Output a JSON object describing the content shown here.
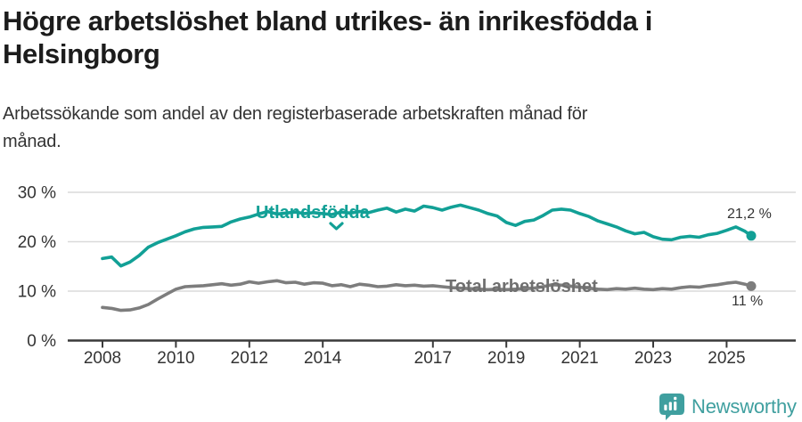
{
  "header": {
    "title_lines": [
      "Högre arbetslöshet bland utrikes- än inrikesfödda i",
      "Helsingborg"
    ],
    "subtitle_lines": [
      "Arbetssökande som andel av den registerbaserade arbetskraften månad för",
      "månad."
    ]
  },
  "chart_data": {
    "type": "line",
    "title": "Högre arbetslöshet bland utrikes- än inrikesfödda i Helsingborg",
    "subtitle": "Arbetssökande som andel av den registerbaserade arbetskraften månad för månad.",
    "xlabel": "",
    "ylabel": "",
    "ylim": [
      0,
      30
    ],
    "xlim": [
      2007.05,
      2026.9
    ],
    "grid": "horizontal",
    "legend_position": "inline-annotations",
    "y_ticks": [
      {
        "value": 0,
        "label": "0 %"
      },
      {
        "value": 10,
        "label": "10 %"
      },
      {
        "value": 20,
        "label": "20 %"
      },
      {
        "value": 30,
        "label": "30 %"
      }
    ],
    "x_ticks": [
      {
        "value": 2008,
        "label": "2008"
      },
      {
        "value": 2010,
        "label": "2010"
      },
      {
        "value": 2012,
        "label": "2012"
      },
      {
        "value": 2014,
        "label": "2014"
      },
      {
        "value": 2017,
        "label": "2017"
      },
      {
        "value": 2019,
        "label": "2019"
      },
      {
        "value": 2021,
        "label": "2021"
      },
      {
        "value": 2023,
        "label": "2023"
      },
      {
        "value": 2025,
        "label": "2025"
      }
    ],
    "x": [
      2008,
      2008.25,
      2008.5,
      2008.75,
      2009,
      2009.25,
      2009.5,
      2009.75,
      2010,
      2010.25,
      2010.5,
      2010.75,
      2011,
      2011.25,
      2011.5,
      2011.75,
      2012,
      2012.25,
      2012.5,
      2012.75,
      2013,
      2013.25,
      2013.5,
      2013.75,
      2014,
      2014.25,
      2014.5,
      2014.75,
      2015,
      2015.25,
      2015.5,
      2015.75,
      2016,
      2016.25,
      2016.5,
      2016.75,
      2017,
      2017.25,
      2017.5,
      2017.75,
      2018,
      2018.25,
      2018.5,
      2018.75,
      2019,
      2019.25,
      2019.5,
      2019.75,
      2020,
      2020.25,
      2020.5,
      2020.75,
      2021,
      2021.25,
      2021.5,
      2021.75,
      2022,
      2022.25,
      2022.5,
      2022.75,
      2023,
      2023.25,
      2023.5,
      2023.75,
      2024,
      2024.25,
      2024.5,
      2024.75,
      2025,
      2025.25,
      2025.5,
      2025.67
    ],
    "series": [
      {
        "name": "Utlandsfödda",
        "color": "#12a096",
        "end_label": "21,2 %",
        "last_value": 21.2,
        "values": [
          16.6,
          16.9,
          15.1,
          15.9,
          17.2,
          18.9,
          19.8,
          20.5,
          21.2,
          22.0,
          22.6,
          22.9,
          23.0,
          23.1,
          24.0,
          24.6,
          25.0,
          25.6,
          26.1,
          25.6,
          25.8,
          26.0,
          25.7,
          25.9,
          25.7,
          25.5,
          26.0,
          25.8,
          26.1,
          25.9,
          26.4,
          26.8,
          26.0,
          26.6,
          26.2,
          27.2,
          26.9,
          26.4,
          27.0,
          27.4,
          26.9,
          26.4,
          25.7,
          25.2,
          23.9,
          23.3,
          24.1,
          24.4,
          25.3,
          26.4,
          26.6,
          26.4,
          25.7,
          25.1,
          24.2,
          23.6,
          23.0,
          22.2,
          21.6,
          21.9,
          21.0,
          20.5,
          20.4,
          20.9,
          21.1,
          20.9,
          21.4,
          21.7,
          22.3,
          23.0,
          22.1,
          21.2
        ]
      },
      {
        "name": "Total arbetslöshet",
        "color": "#7d7d7d",
        "end_label": "11 %",
        "last_value": 11,
        "values": [
          6.7,
          6.5,
          6.1,
          6.2,
          6.6,
          7.3,
          8.4,
          9.4,
          10.4,
          10.9,
          11.0,
          11.1,
          11.3,
          11.5,
          11.2,
          11.4,
          11.9,
          11.6,
          11.9,
          12.1,
          11.7,
          11.8,
          11.4,
          11.7,
          11.6,
          11.1,
          11.3,
          10.9,
          11.4,
          11.2,
          10.9,
          11.0,
          11.3,
          11.1,
          11.2,
          11.0,
          11.1,
          10.9,
          10.7,
          10.6,
          10.5,
          10.4,
          10.3,
          10.4,
          10.3,
          10.4,
          10.5,
          10.6,
          10.9,
          11.3,
          11.2,
          11.0,
          10.8,
          10.6,
          10.4,
          10.3,
          10.5,
          10.4,
          10.6,
          10.4,
          10.3,
          10.5,
          10.4,
          10.7,
          10.9,
          10.8,
          11.1,
          11.3,
          11.6,
          11.8,
          11.4,
          11.0
        ]
      }
    ]
  },
  "colors": {
    "accent_teal": "#12a096",
    "line_gray": "#7d7d7d",
    "label_gray": "#6f6f6f",
    "grid": "#dadada",
    "axis": "#3a3a3a",
    "text_dark": "#1c1c1c",
    "brand_teal": "#3f9f9f"
  },
  "attribution": {
    "brand": "Newsworthy",
    "logo_icon": "newsworthy-speech-bubble-bar-chart-icon"
  }
}
